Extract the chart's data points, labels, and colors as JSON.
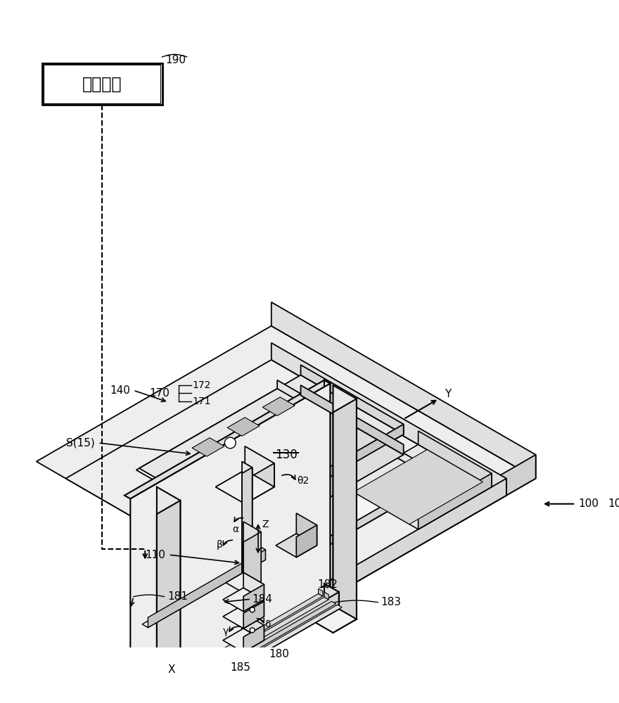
{
  "bg_color": "#ffffff",
  "fig_width": 8.8,
  "fig_height": 10.0,
  "dpi": 100,
  "control_box_text": "控制裝置",
  "refs": {
    "r100": "100",
    "r110": "110",
    "r130": "130",
    "r140": "140",
    "r170": "170",
    "r171": "171",
    "r172": "172",
    "r180": "180",
    "r181": "181",
    "r182": "182",
    "r183": "183",
    "r184": "184",
    "r185": "185",
    "r190": "190",
    "rS15": "S(15)"
  },
  "axes": {
    "X": "X",
    "Y": "Y",
    "Z": "Z",
    "alpha": "α",
    "beta": "β",
    "gamma": "γ",
    "delta": "δ",
    "theta2": "θ2"
  },
  "lc_face1": "#f0f0f0",
  "lc_face2": "#e0e0e0",
  "lc_face3": "#d0d0d0",
  "lc_face4": "#c0c0c0"
}
